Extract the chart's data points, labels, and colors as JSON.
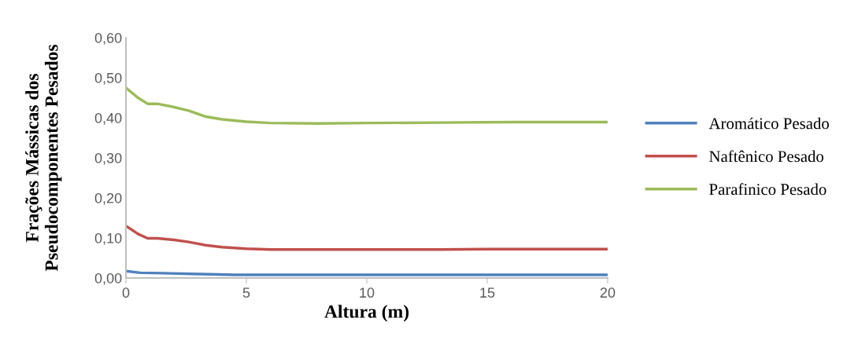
{
  "chart_data": {
    "type": "line",
    "xlabel": "Altura (m)",
    "ylabel": "Frações Mássicas dos\nPseudocomponentes Pesados",
    "xlim": [
      0,
      20
    ],
    "xticks": [
      0,
      5,
      10,
      15,
      20
    ],
    "ylim": [
      0,
      0.6
    ],
    "yticks": [
      {
        "value": 0,
        "label": "0,00"
      },
      {
        "value": 0.1,
        "label": "0,10"
      },
      {
        "value": 0.2,
        "label": "0,20"
      },
      {
        "value": 0.3,
        "label": "0,30"
      },
      {
        "value": 0.4,
        "label": "0,40"
      },
      {
        "value": 0.5,
        "label": "0,50"
      },
      {
        "value": 0.6,
        "label": "0,60"
      }
    ],
    "grid": false,
    "legend": "right",
    "marker": "none",
    "line_style": "solid",
    "series": [
      {
        "name": "Aromático Pesado",
        "color": "#4f81bd",
        "x": [
          0,
          0.6,
          1.5,
          3,
          4.5,
          10,
          20
        ],
        "values": [
          0.017,
          0.013,
          0.012,
          0.01,
          0.008,
          0.008,
          0.008
        ]
      },
      {
        "name": "Naftênico Pesado",
        "color": "#c0504d",
        "x": [
          0,
          0.5,
          0.9,
          1.3,
          2,
          2.6,
          3.3,
          4,
          5,
          6,
          10,
          13,
          15,
          20
        ],
        "values": [
          0.13,
          0.11,
          0.099,
          0.099,
          0.095,
          0.09,
          0.082,
          0.077,
          0.073,
          0.071,
          0.071,
          0.071,
          0.072,
          0.072
        ]
      },
      {
        "name": "Parafinico Pesado",
        "color": "#9bbb59",
        "x": [
          0,
          0.5,
          0.9,
          1.3,
          1.9,
          2.6,
          3.3,
          4,
          5,
          6,
          8,
          10,
          13,
          16,
          20
        ],
        "values": [
          0.475,
          0.45,
          0.435,
          0.435,
          0.428,
          0.418,
          0.403,
          0.396,
          0.39,
          0.387,
          0.386,
          0.387,
          0.388,
          0.389,
          0.389
        ]
      }
    ]
  }
}
